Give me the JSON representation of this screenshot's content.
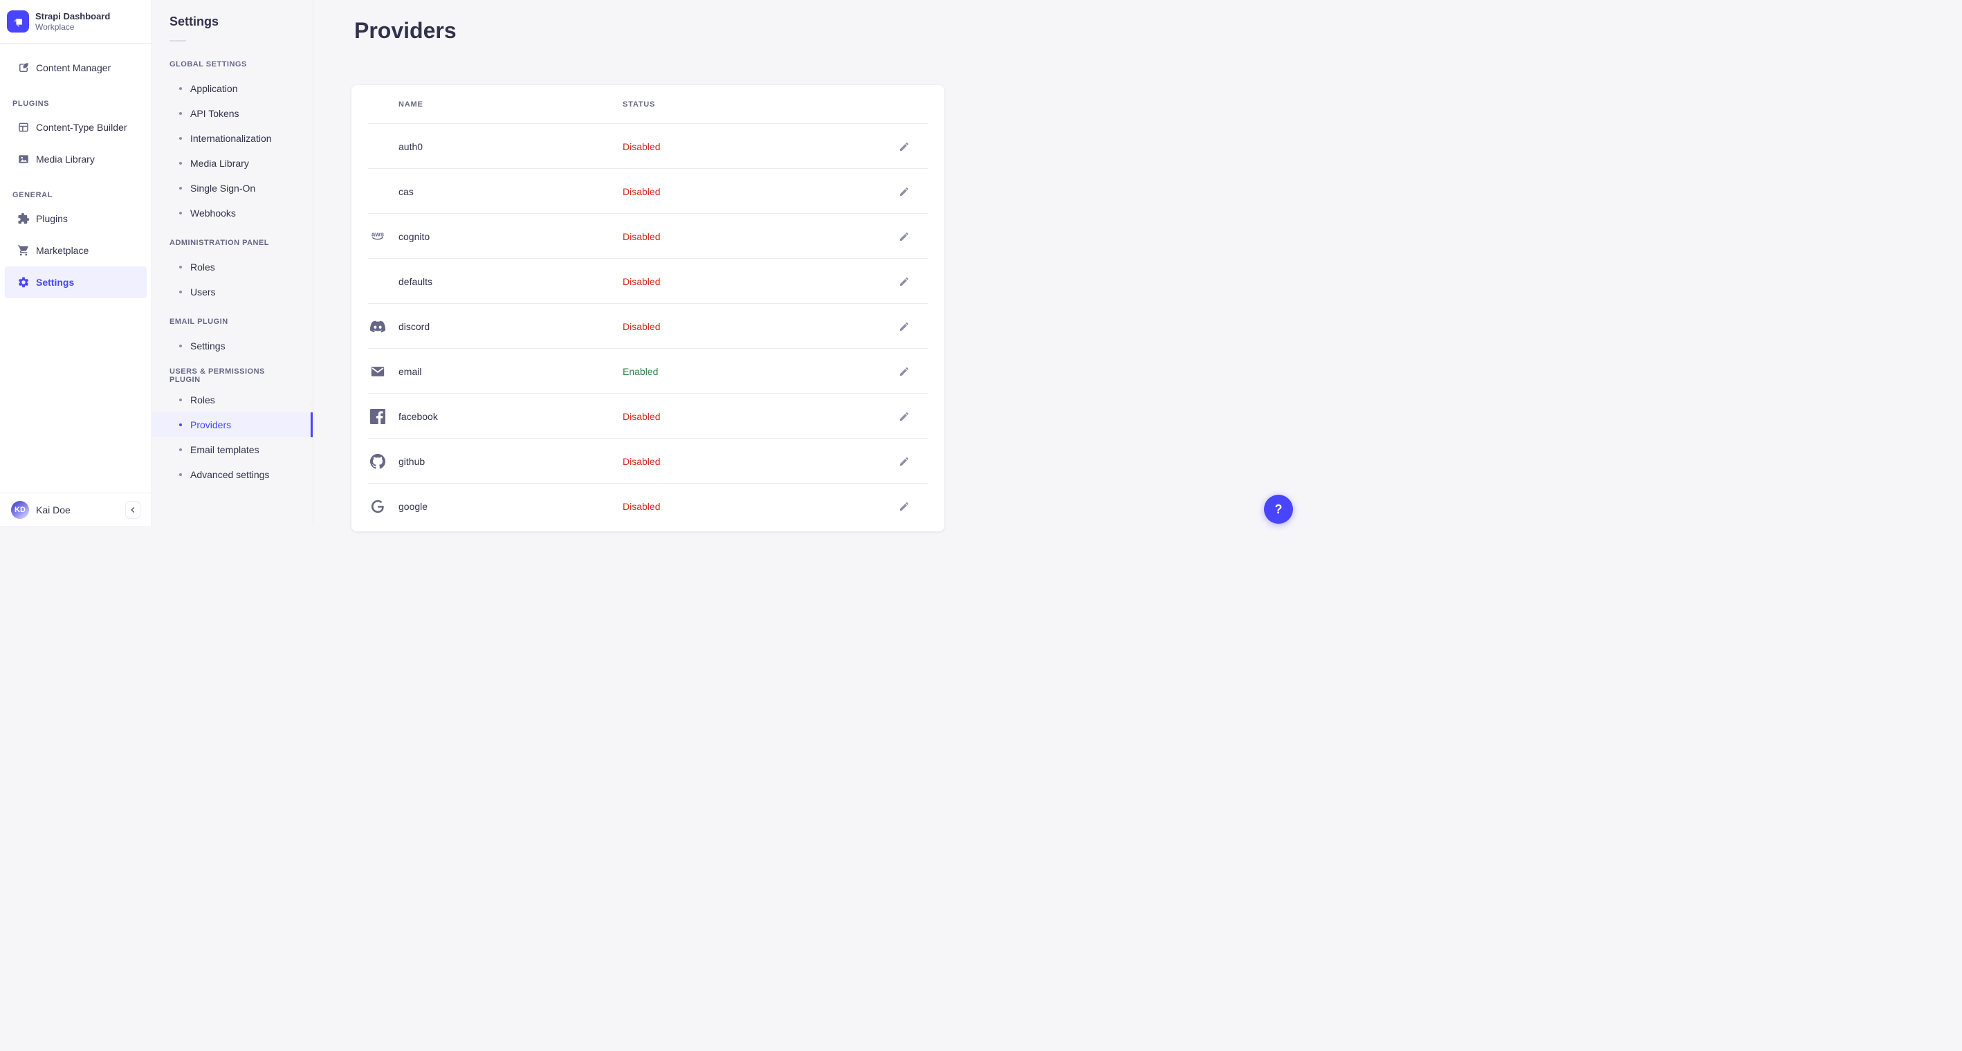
{
  "colors": {
    "primary": "#4945ff",
    "primary_light": "#f0f0ff",
    "danger": "#d02b20",
    "success": "#328048",
    "text": "#32324d",
    "muted": "#666687",
    "muted2": "#8e8ea9",
    "border": "#eaeaef",
    "background": "#f6f6f9",
    "card": "#ffffff"
  },
  "sidebar": {
    "logo_icon": "strapi-logo-icon",
    "logo_title": "Strapi Dashboard",
    "logo_subtitle": "Workplace",
    "nav": [
      {
        "type": "item",
        "label": "Content Manager",
        "icon": "feather-pen-icon",
        "active": false
      },
      {
        "type": "section",
        "label": "PLUGINS"
      },
      {
        "type": "item",
        "label": "Content-Type Builder",
        "icon": "grid-layout-icon",
        "active": false
      },
      {
        "type": "item",
        "label": "Media Library",
        "icon": "picture-icon",
        "active": false
      },
      {
        "type": "section",
        "label": "GENERAL"
      },
      {
        "type": "item",
        "label": "Plugins",
        "icon": "puzzle-icon",
        "active": false
      },
      {
        "type": "item",
        "label": "Marketplace",
        "icon": "cart-icon",
        "active": false
      },
      {
        "type": "item",
        "label": "Settings",
        "icon": "gear-icon",
        "active": true
      }
    ],
    "user": {
      "initials": "KD",
      "name": "Kai Doe"
    },
    "collapse_icon": "chevron-left-icon"
  },
  "subnav": {
    "title": "Settings",
    "sections": [
      {
        "label": "GLOBAL SETTINGS",
        "items": [
          {
            "label": "Application",
            "active": false
          },
          {
            "label": "API Tokens",
            "active": false
          },
          {
            "label": "Internationalization",
            "active": false
          },
          {
            "label": "Media Library",
            "active": false
          },
          {
            "label": "Single Sign-On",
            "active": false
          },
          {
            "label": "Webhooks",
            "active": false
          }
        ]
      },
      {
        "label": "ADMINISTRATION PANEL",
        "items": [
          {
            "label": "Roles",
            "active": false
          },
          {
            "label": "Users",
            "active": false
          }
        ]
      },
      {
        "label": "EMAIL PLUGIN",
        "items": [
          {
            "label": "Settings",
            "active": false
          }
        ]
      },
      {
        "label": "USERS & PERMISSIONS PLUGIN",
        "items": [
          {
            "label": "Roles",
            "active": false
          },
          {
            "label": "Providers",
            "active": true
          },
          {
            "label": "Email templates",
            "active": false
          },
          {
            "label": "Advanced settings",
            "active": false
          }
        ]
      }
    ]
  },
  "main": {
    "title": "Providers",
    "table": {
      "columns": [
        "NAME",
        "STATUS"
      ],
      "rows": [
        {
          "name": "auth0",
          "icon": null,
          "status": "Disabled"
        },
        {
          "name": "cas",
          "icon": null,
          "status": "Disabled"
        },
        {
          "name": "cognito",
          "icon": "aws-icon",
          "status": "Disabled"
        },
        {
          "name": "defaults",
          "icon": null,
          "status": "Disabled"
        },
        {
          "name": "discord",
          "icon": "discord-icon",
          "status": "Disabled"
        },
        {
          "name": "email",
          "icon": "envelope-icon",
          "status": "Enabled"
        },
        {
          "name": "facebook",
          "icon": "facebook-icon",
          "status": "Disabled"
        },
        {
          "name": "github",
          "icon": "github-icon",
          "status": "Disabled"
        },
        {
          "name": "google",
          "icon": "google-icon",
          "status": "Disabled"
        }
      ]
    },
    "edit_icon": "pencil-icon",
    "help_label": "?"
  }
}
